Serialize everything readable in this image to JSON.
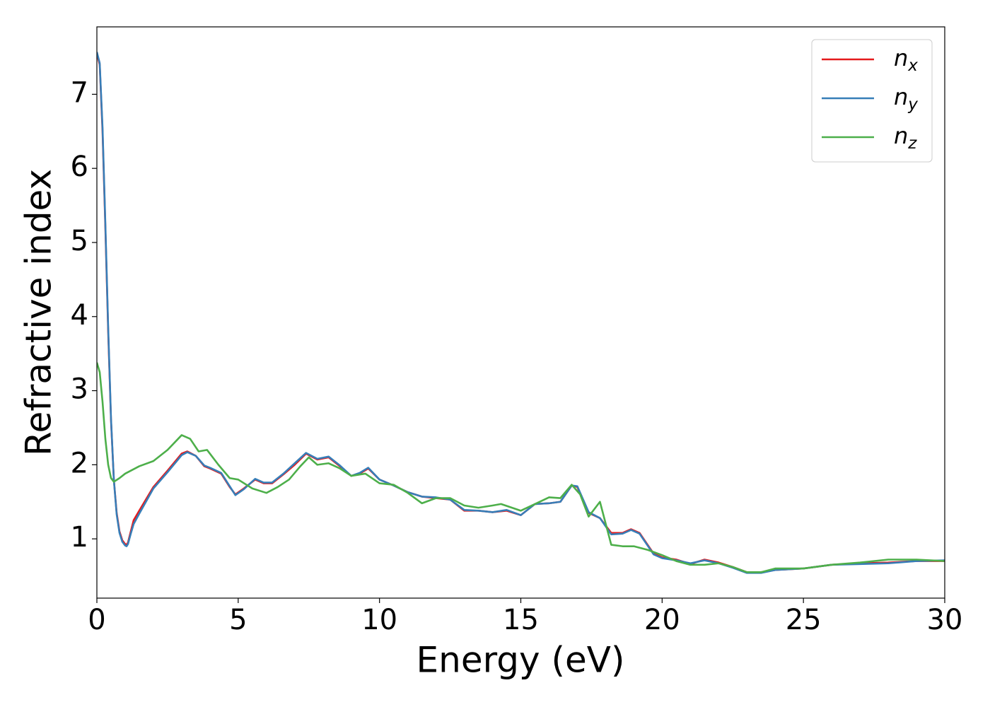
{
  "chart_data": {
    "type": "line",
    "xlabel": "Energy (eV)",
    "ylabel": "Refractive index",
    "xlim": [
      0,
      30
    ],
    "xticks": [
      0,
      5,
      10,
      15,
      20,
      25,
      30
    ],
    "ylim": [
      0.2,
      7.91
    ],
    "yticks": [
      1,
      2,
      3,
      4,
      5,
      6,
      7
    ],
    "legend": "upper right",
    "series": [
      {
        "name": "n_x",
        "color": "#e41a1c",
        "x": [
          0,
          0.1,
          0.2,
          0.3,
          0.4,
          0.5,
          0.6,
          0.7,
          0.8,
          0.9,
          1.0,
          1.05,
          1.1,
          1.2,
          1.3,
          1.5,
          2.0,
          2.5,
          3.0,
          3.2,
          3.5,
          3.8,
          4.0,
          4.4,
          4.7,
          4.9,
          5.2,
          5.6,
          5.9,
          6.2,
          6.6,
          7.0,
          7.4,
          7.8,
          8.2,
          8.6,
          9.0,
          9.3,
          9.6,
          10.0,
          10.5,
          11.0,
          11.5,
          12.0,
          12.5,
          13.0,
          13.5,
          14.0,
          14.5,
          15.0,
          15.5,
          16.0,
          16.4,
          16.8,
          17.0,
          17.4,
          17.8,
          18.2,
          18.6,
          18.9,
          19.2,
          19.7,
          20.0,
          20.5,
          21.0,
          21.5,
          22.0,
          22.5,
          23.0,
          23.5,
          24.0,
          25.0,
          26.0,
          27.0,
          28.0,
          29.0,
          30.0
        ],
        "values": [
          7.55,
          7.4,
          6.5,
          5.2,
          3.8,
          2.6,
          1.8,
          1.35,
          1.1,
          0.98,
          0.93,
          0.92,
          0.95,
          1.1,
          1.25,
          1.38,
          1.7,
          1.92,
          2.15,
          2.18,
          2.12,
          1.98,
          1.95,
          1.88,
          1.7,
          1.6,
          1.68,
          1.8,
          1.75,
          1.75,
          1.87,
          2.0,
          2.15,
          2.07,
          2.1,
          1.98,
          1.85,
          1.88,
          1.95,
          1.8,
          1.72,
          1.63,
          1.57,
          1.55,
          1.53,
          1.38,
          1.38,
          1.36,
          1.38,
          1.32,
          1.47,
          1.48,
          1.5,
          1.72,
          1.7,
          1.35,
          1.28,
          1.08,
          1.08,
          1.13,
          1.08,
          0.8,
          0.75,
          0.72,
          0.66,
          0.72,
          0.68,
          0.62,
          0.55,
          0.55,
          0.58,
          0.6,
          0.65,
          0.67,
          0.68,
          0.7,
          0.7
        ]
      },
      {
        "name": "n_y",
        "color": "#377eb8",
        "x": [
          0,
          0.1,
          0.2,
          0.3,
          0.4,
          0.5,
          0.6,
          0.7,
          0.8,
          0.9,
          1.0,
          1.05,
          1.1,
          1.2,
          1.3,
          1.5,
          2.0,
          2.5,
          3.0,
          3.2,
          3.5,
          3.8,
          4.0,
          4.4,
          4.7,
          4.9,
          5.2,
          5.6,
          5.9,
          6.2,
          6.6,
          7.0,
          7.4,
          7.8,
          8.2,
          8.6,
          9.0,
          9.3,
          9.6,
          10.0,
          10.5,
          11.0,
          11.5,
          12.0,
          12.5,
          13.0,
          13.5,
          14.0,
          14.5,
          15.0,
          15.5,
          16.0,
          16.4,
          16.8,
          17.0,
          17.4,
          17.8,
          18.2,
          18.6,
          18.9,
          19.2,
          19.7,
          20.0,
          20.5,
          21.0,
          21.5,
          22.0,
          22.5,
          23.0,
          23.5,
          24.0,
          25.0,
          26.0,
          27.0,
          28.0,
          29.0,
          30.0
        ],
        "values": [
          7.57,
          7.42,
          6.55,
          5.25,
          3.85,
          2.62,
          1.8,
          1.33,
          1.08,
          0.96,
          0.91,
          0.9,
          0.93,
          1.07,
          1.2,
          1.34,
          1.68,
          1.9,
          2.13,
          2.17,
          2.12,
          1.99,
          1.96,
          1.89,
          1.71,
          1.59,
          1.67,
          1.81,
          1.76,
          1.76,
          1.88,
          2.02,
          2.16,
          2.08,
          2.11,
          1.99,
          1.85,
          1.89,
          1.96,
          1.8,
          1.72,
          1.63,
          1.57,
          1.56,
          1.53,
          1.39,
          1.38,
          1.36,
          1.39,
          1.32,
          1.47,
          1.48,
          1.5,
          1.72,
          1.71,
          1.36,
          1.28,
          1.06,
          1.07,
          1.12,
          1.07,
          0.79,
          0.74,
          0.71,
          0.67,
          0.71,
          0.67,
          0.61,
          0.54,
          0.54,
          0.58,
          0.6,
          0.65,
          0.66,
          0.67,
          0.7,
          0.71
        ]
      },
      {
        "name": "n_z",
        "color": "#4daf4a",
        "x": [
          0,
          0.1,
          0.2,
          0.3,
          0.4,
          0.5,
          0.6,
          0.8,
          1.0,
          1.5,
          2.0,
          2.5,
          3.0,
          3.3,
          3.6,
          3.9,
          4.3,
          4.7,
          5.0,
          5.5,
          6.0,
          6.4,
          6.8,
          7.2,
          7.5,
          7.8,
          8.2,
          8.6,
          9.0,
          9.5,
          10.0,
          10.5,
          11.0,
          11.5,
          12.0,
          12.5,
          13.0,
          13.5,
          14.0,
          14.3,
          15.0,
          15.5,
          16.0,
          16.4,
          16.8,
          17.1,
          17.4,
          17.8,
          18.2,
          18.6,
          19.0,
          19.5,
          20.0,
          20.5,
          21.0,
          21.5,
          22.0,
          22.5,
          23.0,
          23.5,
          24.0,
          25.0,
          26.0,
          27.0,
          28.0,
          29.0,
          30.0
        ],
        "values": [
          3.38,
          3.25,
          2.85,
          2.35,
          2.0,
          1.82,
          1.77,
          1.82,
          1.88,
          1.98,
          2.05,
          2.2,
          2.4,
          2.35,
          2.18,
          2.2,
          2.0,
          1.82,
          1.8,
          1.68,
          1.62,
          1.7,
          1.8,
          1.98,
          2.1,
          2.0,
          2.02,
          1.95,
          1.85,
          1.88,
          1.75,
          1.73,
          1.62,
          1.48,
          1.55,
          1.55,
          1.45,
          1.42,
          1.45,
          1.47,
          1.38,
          1.47,
          1.56,
          1.55,
          1.73,
          1.6,
          1.3,
          1.5,
          0.92,
          0.9,
          0.9,
          0.85,
          0.78,
          0.7,
          0.65,
          0.65,
          0.67,
          0.62,
          0.55,
          0.55,
          0.6,
          0.6,
          0.65,
          0.68,
          0.72,
          0.72,
          0.7
        ]
      }
    ]
  }
}
